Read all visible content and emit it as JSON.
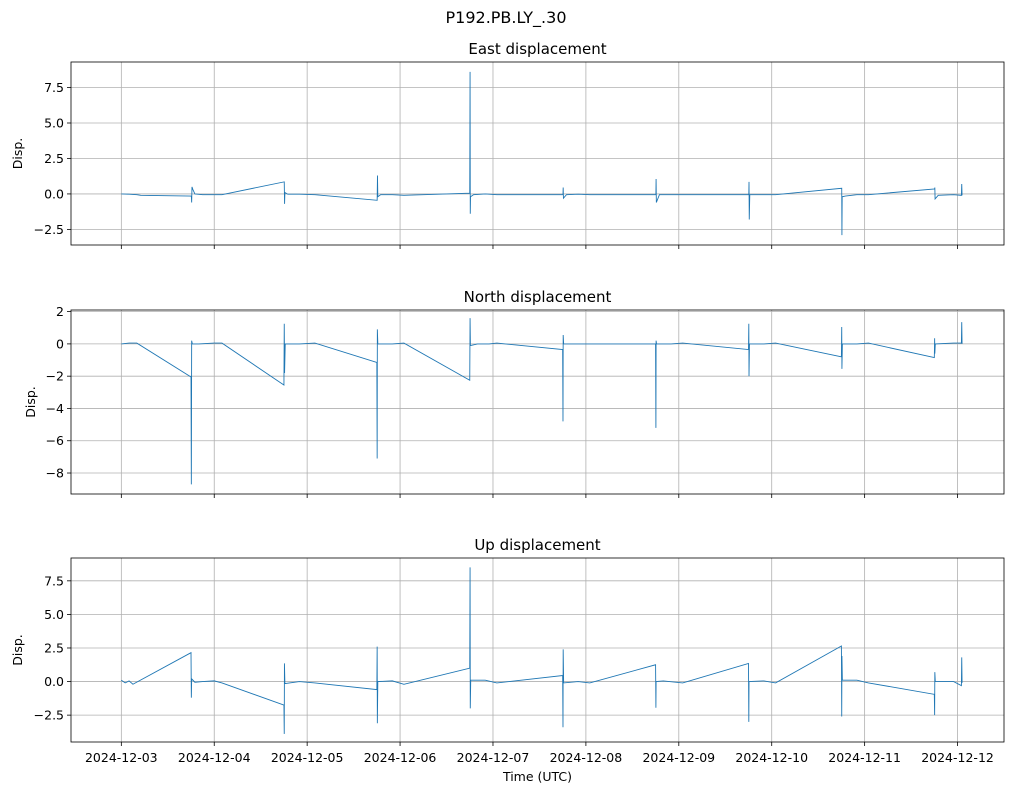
{
  "figure_title": "P192.PB.LY_.30",
  "chart_data": [
    {
      "type": "line",
      "title": "East displacement",
      "ylabel": "Disp.",
      "xlabel": "",
      "ylim": [
        -3.6,
        9.3
      ],
      "yticks": [
        -2.5,
        0.0,
        2.5,
        5.0,
        7.5
      ],
      "ytick_labels": [
        "−2.5",
        "0.0",
        "2.5",
        "5.0",
        "7.5"
      ],
      "grid": true,
      "series": [
        {
          "color": "#1f77b4",
          "points": [
            [
              "2024-12-03T00:00",
              0.0
            ],
            [
              "2024-12-03T02:00",
              -0.02
            ],
            [
              "2024-12-03T04:00",
              -0.05
            ],
            [
              "2024-12-03T05:00",
              -0.1
            ],
            [
              "2024-12-03T18:05",
              -0.15
            ],
            [
              "2024-12-03T18:10",
              -0.6
            ],
            [
              "2024-12-03T18:15",
              0.5
            ],
            [
              "2024-12-03T18:30",
              0.3
            ],
            [
              "2024-12-03T19:00",
              0.0
            ],
            [
              "2024-12-03T21:00",
              -0.05
            ],
            [
              "2024-12-04T00:00",
              -0.05
            ],
            [
              "2024-12-04T02:00",
              -0.05
            ],
            [
              "2024-12-04T18:05",
              0.85
            ],
            [
              "2024-12-04T18:10",
              -0.7
            ],
            [
              "2024-12-04T18:15",
              0.1
            ],
            [
              "2024-12-04T19:00",
              -0.02
            ],
            [
              "2024-12-04T22:00",
              -0.02
            ],
            [
              "2024-12-05T02:00",
              -0.05
            ],
            [
              "2024-12-05T18:05",
              -0.45
            ],
            [
              "2024-12-05T18:10",
              1.3
            ],
            [
              "2024-12-05T18:15",
              -0.2
            ],
            [
              "2024-12-05T19:00",
              -0.05
            ],
            [
              "2024-12-05T22:00",
              -0.05
            ],
            [
              "2024-12-06T01:00",
              -0.1
            ],
            [
              "2024-12-06T18:00",
              0.05
            ],
            [
              "2024-12-06T18:05",
              8.6
            ],
            [
              "2024-12-06T18:08",
              -1.4
            ],
            [
              "2024-12-06T18:12",
              -0.2
            ],
            [
              "2024-12-06T19:00",
              -0.05
            ],
            [
              "2024-12-06T22:00",
              0.0
            ],
            [
              "2024-12-07T01:00",
              -0.05
            ],
            [
              "2024-12-07T18:05",
              -0.05
            ],
            [
              "2024-12-07T18:08",
              0.45
            ],
            [
              "2024-12-07T18:12",
              -0.3
            ],
            [
              "2024-12-07T19:00",
              -0.05
            ],
            [
              "2024-12-07T22:00",
              -0.02
            ],
            [
              "2024-12-08T01:00",
              -0.05
            ],
            [
              "2024-12-08T18:05",
              -0.05
            ],
            [
              "2024-12-08T18:08",
              1.05
            ],
            [
              "2024-12-08T18:12",
              -0.6
            ],
            [
              "2024-12-08T19:00",
              -0.05
            ],
            [
              "2024-12-08T22:00",
              -0.05
            ],
            [
              "2024-12-09T01:00",
              -0.05
            ],
            [
              "2024-12-09T18:05",
              -0.05
            ],
            [
              "2024-12-09T18:08",
              0.85
            ],
            [
              "2024-12-09T18:12",
              -1.8
            ],
            [
              "2024-12-09T18:20",
              -0.05
            ],
            [
              "2024-12-09T22:00",
              -0.05
            ],
            [
              "2024-12-10T01:00",
              -0.05
            ],
            [
              "2024-12-10T18:05",
              0.4
            ],
            [
              "2024-12-10T18:08",
              -2.9
            ],
            [
              "2024-12-10T18:12",
              -0.2
            ],
            [
              "2024-12-10T19:00",
              -0.15
            ],
            [
              "2024-12-10T22:00",
              -0.05
            ],
            [
              "2024-12-11T01:00",
              -0.05
            ],
            [
              "2024-12-11T18:05",
              0.35
            ],
            [
              "2024-12-11T18:08",
              0.45
            ],
            [
              "2024-12-11T18:12",
              -0.35
            ],
            [
              "2024-12-11T19:00",
              -0.1
            ],
            [
              "2024-12-11T23:00",
              -0.05
            ],
            [
              "2024-12-12T01:00",
              -0.1
            ],
            [
              "2024-12-12T01:05",
              0.7
            ],
            [
              "2024-12-12T01:10",
              -0.1
            ]
          ]
        }
      ]
    },
    {
      "type": "line",
      "title": "North displacement",
      "ylabel": "Disp.",
      "xlabel": "",
      "ylim": [
        -9.3,
        2.1
      ],
      "yticks": [
        -8,
        -6,
        -4,
        -2,
        0,
        2
      ],
      "ytick_labels": [
        "−8",
        "−6",
        "−4",
        "−2",
        "0",
        "2"
      ],
      "grid": true,
      "series": [
        {
          "color": "#1f77b4",
          "points": [
            [
              "2024-12-03T00:00",
              0.0
            ],
            [
              "2024-12-03T02:00",
              0.05
            ],
            [
              "2024-12-03T04:00",
              0.05
            ],
            [
              "2024-12-03T18:00",
              -2.05
            ],
            [
              "2024-12-03T18:05",
              -8.7
            ],
            [
              "2024-12-03T18:10",
              0.2
            ],
            [
              "2024-12-03T18:20",
              0.0
            ],
            [
              "2024-12-03T20:00",
              0.0
            ],
            [
              "2024-12-04T00:00",
              0.05
            ],
            [
              "2024-12-04T02:00",
              0.05
            ],
            [
              "2024-12-04T18:00",
              -2.55
            ],
            [
              "2024-12-04T18:05",
              1.25
            ],
            [
              "2024-12-04T18:10",
              -1.8
            ],
            [
              "2024-12-04T18:20",
              0.0
            ],
            [
              "2024-12-04T22:00",
              0.0
            ],
            [
              "2024-12-05T02:00",
              0.05
            ],
            [
              "2024-12-05T18:00",
              -1.15
            ],
            [
              "2024-12-05T18:05",
              -7.1
            ],
            [
              "2024-12-05T18:08",
              0.9
            ],
            [
              "2024-12-05T18:15",
              0.0
            ],
            [
              "2024-12-05T22:00",
              0.0
            ],
            [
              "2024-12-06T01:00",
              0.05
            ],
            [
              "2024-12-06T18:00",
              -2.25
            ],
            [
              "2024-12-06T18:05",
              1.6
            ],
            [
              "2024-12-06T18:10",
              -0.1
            ],
            [
              "2024-12-06T20:00",
              0.0
            ],
            [
              "2024-12-06T23:00",
              0.0
            ],
            [
              "2024-12-07T01:00",
              0.05
            ],
            [
              "2024-12-07T18:00",
              -0.35
            ],
            [
              "2024-12-07T18:05",
              -4.8
            ],
            [
              "2024-12-07T18:08",
              0.55
            ],
            [
              "2024-12-07T18:15",
              0.0
            ],
            [
              "2024-12-07T22:00",
              0.0
            ],
            [
              "2024-12-08T01:00",
              0.0
            ],
            [
              "2024-12-08T18:00",
              0.0
            ],
            [
              "2024-12-08T18:05",
              -5.2
            ],
            [
              "2024-12-08T18:08",
              0.2
            ],
            [
              "2024-12-08T18:15",
              0.0
            ],
            [
              "2024-12-08T22:00",
              0.0
            ],
            [
              "2024-12-09T01:00",
              0.05
            ],
            [
              "2024-12-09T18:00",
              -0.35
            ],
            [
              "2024-12-09T18:05",
              1.25
            ],
            [
              "2024-12-09T18:08",
              -2.0
            ],
            [
              "2024-12-09T18:15",
              0.0
            ],
            [
              "2024-12-09T22:00",
              0.0
            ],
            [
              "2024-12-10T01:00",
              0.05
            ],
            [
              "2024-12-10T18:00",
              -0.8
            ],
            [
              "2024-12-10T18:05",
              1.05
            ],
            [
              "2024-12-10T18:08",
              -1.55
            ],
            [
              "2024-12-10T18:15",
              0.0
            ],
            [
              "2024-12-10T22:00",
              0.0
            ],
            [
              "2024-12-11T01:00",
              0.05
            ],
            [
              "2024-12-11T18:00",
              -0.85
            ],
            [
              "2024-12-11T18:05",
              0.35
            ],
            [
              "2024-12-11T18:08",
              -0.6
            ],
            [
              "2024-12-11T18:15",
              0.0
            ],
            [
              "2024-12-11T23:00",
              0.05
            ],
            [
              "2024-12-12T01:00",
              0.05
            ],
            [
              "2024-12-12T01:05",
              1.35
            ],
            [
              "2024-12-12T01:10",
              0.0
            ]
          ]
        }
      ]
    },
    {
      "type": "line",
      "title": "Up displacement",
      "ylabel": "Disp.",
      "xlabel": "Time (UTC)",
      "ylim": [
        -4.5,
        9.2
      ],
      "yticks": [
        -2.5,
        0.0,
        2.5,
        5.0,
        7.5
      ],
      "ytick_labels": [
        "−2.5",
        "0.0",
        "2.5",
        "5.0",
        "7.5"
      ],
      "xticks": [
        "2024-12-03",
        "2024-12-04",
        "2024-12-05",
        "2024-12-06",
        "2024-12-07",
        "2024-12-08",
        "2024-12-09",
        "2024-12-10",
        "2024-12-11",
        "2024-12-12"
      ],
      "xlim": [
        "2024-12-02T11:00",
        "2024-12-12T12:00"
      ],
      "grid": true,
      "series": [
        {
          "color": "#1f77b4",
          "points": [
            [
              "2024-12-03T00:00",
              0.1
            ],
            [
              "2024-12-03T01:00",
              -0.1
            ],
            [
              "2024-12-03T02:00",
              0.05
            ],
            [
              "2024-12-03T03:00",
              -0.2
            ],
            [
              "2024-12-03T18:00",
              2.15
            ],
            [
              "2024-12-03T18:05",
              -1.2
            ],
            [
              "2024-12-03T18:10",
              0.2
            ],
            [
              "2024-12-03T19:00",
              -0.05
            ],
            [
              "2024-12-03T21:00",
              0.0
            ],
            [
              "2024-12-04T00:00",
              0.05
            ],
            [
              "2024-12-04T02:00",
              -0.1
            ],
            [
              "2024-12-04T18:00",
              -1.75
            ],
            [
              "2024-12-04T18:05",
              -3.9
            ],
            [
              "2024-12-04T18:08",
              1.35
            ],
            [
              "2024-12-04T18:15",
              -0.15
            ],
            [
              "2024-12-04T22:00",
              0.0
            ],
            [
              "2024-12-05T02:00",
              -0.1
            ],
            [
              "2024-12-05T18:00",
              -0.6
            ],
            [
              "2024-12-05T18:05",
              2.6
            ],
            [
              "2024-12-05T18:08",
              -3.1
            ],
            [
              "2024-12-05T18:15",
              0.0
            ],
            [
              "2024-12-05T22:00",
              0.05
            ],
            [
              "2024-12-06T01:00",
              -0.2
            ],
            [
              "2024-12-06T18:00",
              1.0
            ],
            [
              "2024-12-06T18:05",
              8.5
            ],
            [
              "2024-12-06T18:08",
              -2.0
            ],
            [
              "2024-12-06T18:15",
              0.1
            ],
            [
              "2024-12-06T22:00",
              0.1
            ],
            [
              "2024-12-07T01:00",
              -0.1
            ],
            [
              "2024-12-07T18:00",
              0.45
            ],
            [
              "2024-12-07T18:05",
              -3.4
            ],
            [
              "2024-12-07T18:08",
              2.4
            ],
            [
              "2024-12-07T18:15",
              -0.1
            ],
            [
              "2024-12-07T22:00",
              0.0
            ],
            [
              "2024-12-08T01:00",
              -0.1
            ],
            [
              "2024-12-08T18:00",
              1.25
            ],
            [
              "2024-12-08T18:05",
              -1.95
            ],
            [
              "2024-12-08T18:08",
              0.0
            ],
            [
              "2024-12-08T20:00",
              0.05
            ],
            [
              "2024-12-09T01:00",
              -0.1
            ],
            [
              "2024-12-09T18:00",
              1.35
            ],
            [
              "2024-12-09T18:05",
              -3.0
            ],
            [
              "2024-12-09T18:08",
              0.0
            ],
            [
              "2024-12-09T22:00",
              0.05
            ],
            [
              "2024-12-10T01:00",
              -0.1
            ],
            [
              "2024-12-10T18:00",
              2.65
            ],
            [
              "2024-12-10T18:05",
              -2.6
            ],
            [
              "2024-12-10T18:08",
              1.9
            ],
            [
              "2024-12-10T18:15",
              0.1
            ],
            [
              "2024-12-10T22:00",
              0.1
            ],
            [
              "2024-12-11T01:00",
              -0.1
            ],
            [
              "2024-12-11T18:00",
              -0.95
            ],
            [
              "2024-12-11T18:05",
              -2.5
            ],
            [
              "2024-12-11T18:08",
              0.7
            ],
            [
              "2024-12-11T18:15",
              0.0
            ],
            [
              "2024-12-11T23:00",
              0.0
            ],
            [
              "2024-12-12T01:00",
              -0.3
            ],
            [
              "2024-12-12T01:05",
              1.8
            ],
            [
              "2024-12-12T01:10",
              -0.1
            ]
          ]
        }
      ]
    }
  ]
}
